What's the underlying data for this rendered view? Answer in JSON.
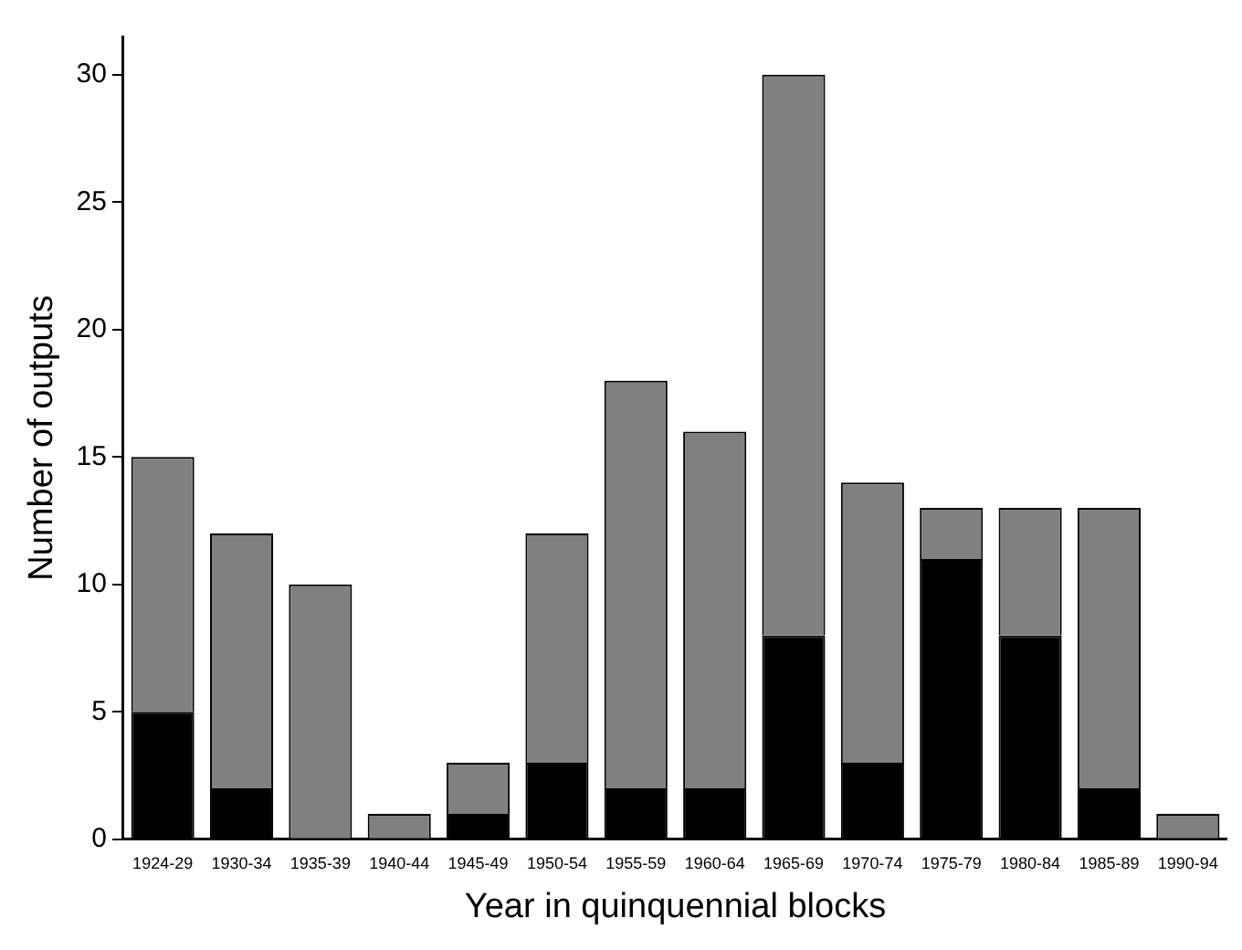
{
  "chart_data": {
    "type": "bar",
    "stacked": true,
    "xlabel": "Year in quinquennial blocks",
    "ylabel": "Number of outputs",
    "categories": [
      "1924-29",
      "1930-34",
      "1935-39",
      "1940-44",
      "1945-49",
      "1950-54",
      "1955-59",
      "1960-64",
      "1965-69",
      "1970-74",
      "1975-79",
      "1980-84",
      "1985-89",
      "1990-94"
    ],
    "series": [
      {
        "color": "#000000",
        "values": [
          5,
          2,
          0,
          0,
          1,
          3,
          2,
          2,
          8,
          3,
          11,
          8,
          2,
          0
        ]
      },
      {
        "color": "#808080",
        "values": [
          10,
          10,
          10,
          1,
          2,
          9,
          16,
          14,
          22,
          11,
          2,
          5,
          11,
          1
        ]
      }
    ],
    "ylim": [
      0,
      31.5
    ],
    "yticks": [
      0,
      5,
      10,
      15,
      20,
      25,
      30
    ],
    "grid": false,
    "legend": false
  }
}
